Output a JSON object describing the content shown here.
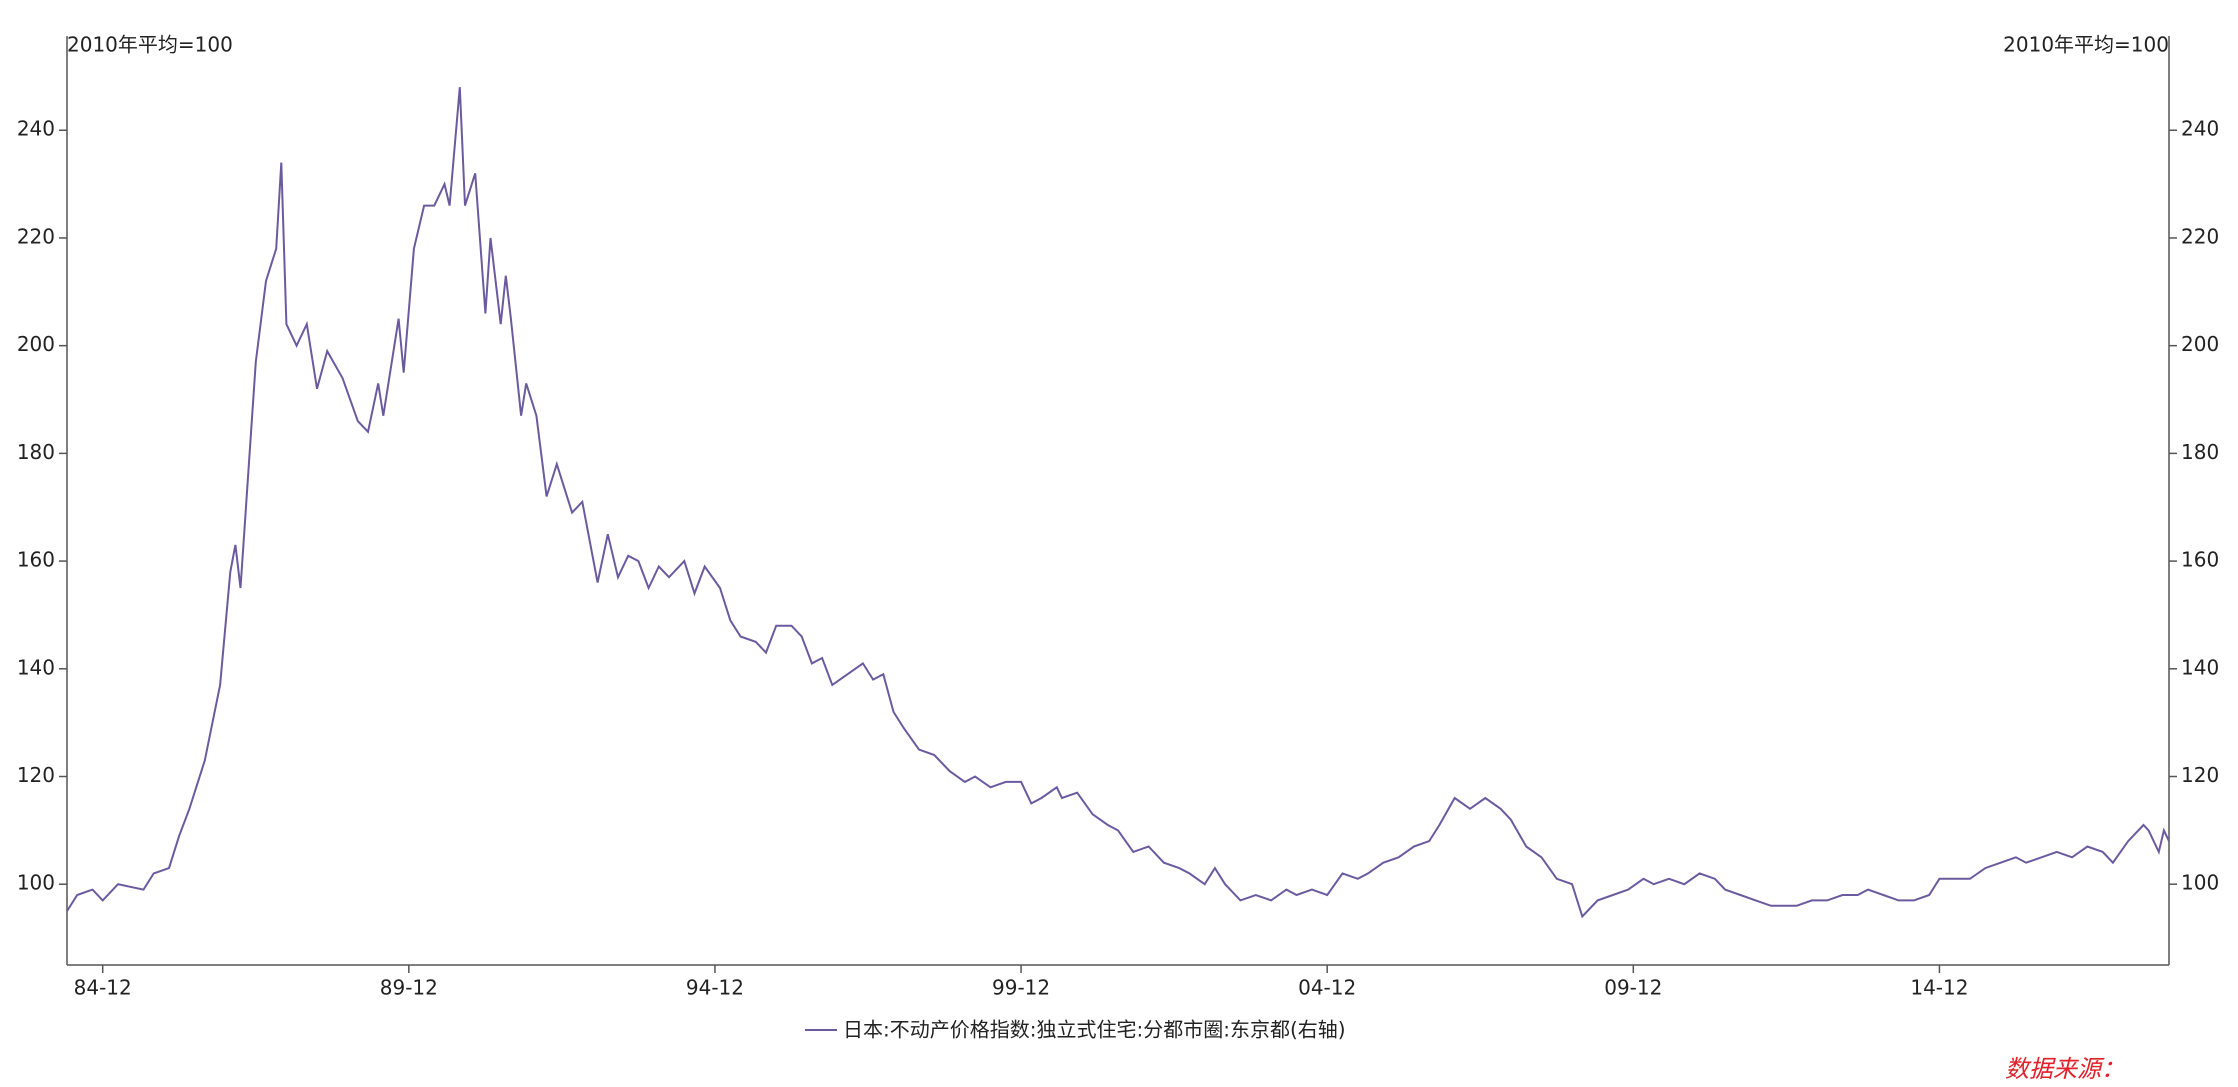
{
  "chart_data": {
    "type": "line",
    "y_label": "2010年平均=100",
    "y2_label": "2010年平均=100",
    "source": "数据来源：",
    "ylim": [
      85,
      257.5
    ],
    "yticks": [
      100,
      120,
      140,
      160,
      180,
      200,
      220,
      240
    ],
    "y2lim": [
      85,
      257.5
    ],
    "y2ticks": [
      100,
      120,
      140,
      160,
      180,
      200,
      220,
      240
    ],
    "xlim": [
      "84-05",
      "18-09"
    ],
    "xticks": [
      "84-12",
      "89-12",
      "94-12",
      "99-12",
      "04-12",
      "09-12",
      "14-12"
    ],
    "x": [
      "84-05",
      "84-07",
      "84-10",
      "84-12",
      "85-03",
      "85-08",
      "85-10",
      "86-01",
      "86-03",
      "86-05",
      "86-08",
      "86-11",
      "87-01",
      "87-02",
      "87-03",
      "87-06",
      "87-08",
      "87-10",
      "87-11",
      "87-12",
      "88-02",
      "88-04",
      "88-06",
      "88-08",
      "88-11",
      "89-02",
      "89-04",
      "89-06",
      "89-07",
      "89-10",
      "89-11",
      "90-01",
      "90-03",
      "90-05",
      "90-07",
      "90-08",
      "90-10",
      "90-11",
      "91-01",
      "91-03",
      "91-04",
      "91-06",
      "91-07",
      "91-08",
      "91-10",
      "91-11",
      "92-01",
      "92-03",
      "92-05",
      "92-08",
      "92-10",
      "93-01",
      "93-03",
      "93-05",
      "93-07",
      "93-09",
      "93-11",
      "94-01",
      "94-03",
      "94-06",
      "94-08",
      "94-10",
      "95-01",
      "95-03",
      "95-05",
      "95-08",
      "95-10",
      "95-12",
      "96-03",
      "96-05",
      "96-07",
      "96-09",
      "96-11",
      "97-02",
      "97-05",
      "97-07",
      "97-09",
      "97-11",
      "98-01",
      "98-04",
      "98-07",
      "98-10",
      "99-01",
      "99-03",
      "99-06",
      "99-09",
      "99-12",
      "00-02",
      "00-04",
      "00-07",
      "00-08",
      "00-11",
      "01-02",
      "01-05",
      "01-07",
      "01-10",
      "02-01",
      "02-04",
      "02-07",
      "02-09",
      "02-12",
      "03-02",
      "03-04",
      "03-07",
      "03-10",
      "04-01",
      "04-04",
      "04-06",
      "04-09",
      "04-12",
      "05-03",
      "05-06",
      "05-08",
      "05-11",
      "06-02",
      "06-05",
      "06-08",
      "06-10",
      "07-01",
      "07-04",
      "07-07",
      "07-10",
      "07-12",
      "08-03",
      "08-06",
      "08-09",
      "08-12",
      "09-02",
      "09-05",
      "09-08",
      "09-11",
      "10-02",
      "10-04",
      "10-07",
      "10-10",
      "11-01",
      "11-04",
      "11-06",
      "11-09",
      "11-12",
      "12-03",
      "12-06",
      "12-08",
      "12-11",
      "13-02",
      "13-05",
      "13-08",
      "13-10",
      "14-01",
      "14-04",
      "14-07",
      "14-10",
      "14-12",
      "15-03",
      "15-06",
      "15-09",
      "15-12",
      "16-03",
      "16-05",
      "16-08",
      "16-11",
      "17-02",
      "17-05",
      "17-08",
      "17-10",
      "18-01",
      "18-04",
      "18-05",
      "18-07",
      "18-08",
      "18-09"
    ],
    "series": [
      {
        "name": "日本:不动产价格指数:独立式住宅:分都市圈:东京都(右轴)",
        "color": "#6b5b9e",
        "axis": "y2",
        "values": [
          95,
          98,
          99,
          97,
          100,
          99,
          102,
          103,
          109,
          114,
          123,
          137,
          158,
          163,
          155,
          197,
          212,
          218,
          234,
          204,
          200,
          204,
          192,
          199,
          194,
          186,
          184,
          193,
          187,
          205,
          195,
          218,
          226,
          226,
          230,
          226,
          248,
          226,
          232,
          206,
          220,
          204,
          213,
          205,
          187,
          193,
          187,
          172,
          178,
          169,
          171,
          156,
          165,
          157,
          161,
          160,
          155,
          159,
          157,
          160,
          154,
          159,
          155,
          149,
          146,
          145,
          143,
          148,
          148,
          146,
          141,
          142,
          137,
          139,
          141,
          138,
          139,
          132,
          129,
          125,
          124,
          121,
          119,
          120,
          118,
          119,
          119,
          115,
          116,
          118,
          116,
          117,
          113,
          111,
          110,
          106,
          107,
          104,
          103,
          102,
          100,
          103,
          100,
          97,
          98,
          97,
          99,
          98,
          99,
          98,
          102,
          101,
          102,
          104,
          105,
          107,
          108,
          111,
          116,
          114,
          116,
          114,
          112,
          107,
          105,
          101,
          100,
          94,
          97,
          98,
          99,
          101,
          100,
          101,
          100,
          102,
          101,
          99,
          98,
          97,
          96,
          96,
          96,
          97,
          97,
          98,
          98,
          99,
          98,
          97,
          97,
          98,
          101,
          101,
          101,
          103,
          104,
          105,
          104,
          105,
          106,
          105,
          107,
          106,
          104,
          108,
          111,
          110,
          106,
          110,
          108
        ]
      }
    ]
  }
}
